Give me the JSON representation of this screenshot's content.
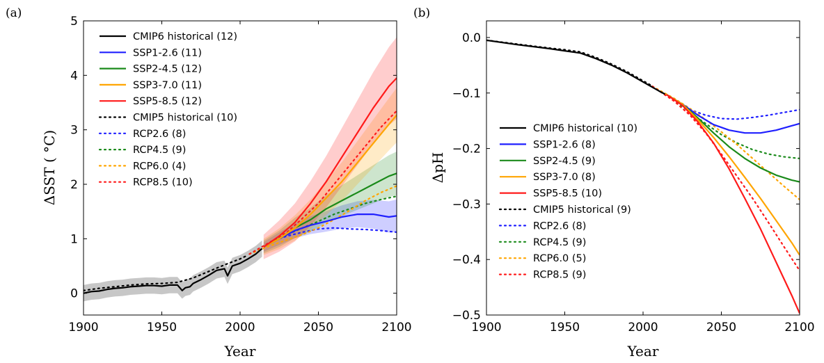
{
  "colors": {
    "historical": "#000000",
    "ssp126": "#1f1fff",
    "ssp245": "#1a8a1a",
    "ssp370": "#ffa500",
    "ssp585": "#ff1a1a"
  },
  "chart_data": [
    {
      "panel_label": "(a)",
      "type": "line",
      "xlabel": "Year",
      "ylabel": "ΔSST ( °C)",
      "xlim": [
        1900,
        2100
      ],
      "ylim": [
        -0.4,
        5
      ],
      "xticks": [
        1900,
        1950,
        2000,
        2050,
        2100
      ],
      "yticks": [
        0,
        1,
        2,
        3,
        4,
        5
      ],
      "legend_position": "upper-left",
      "legend": [
        {
          "label": "CMIP6 historical (12)",
          "color": "#000000",
          "style": "solid"
        },
        {
          "label": "SSP1-2.6 (11)",
          "color": "#1f1fff",
          "style": "solid"
        },
        {
          "label": "SSP2-4.5 (12)",
          "color": "#1a8a1a",
          "style": "solid"
        },
        {
          "label": "SSP3-7.0 (11)",
          "color": "#ffa500",
          "style": "solid"
        },
        {
          "label": "SSP5-8.5 (12)",
          "color": "#ff1a1a",
          "style": "solid"
        },
        {
          "label": "CMIP5 historical (10)",
          "color": "#000000",
          "style": "dotted"
        },
        {
          "label": "RCP2.6 (8)",
          "color": "#1f1fff",
          "style": "dotted"
        },
        {
          "label": "RCP4.5 (9)",
          "color": "#1a8a1a",
          "style": "dotted"
        },
        {
          "label": "RCP6.0 (4)",
          "color": "#ffa500",
          "style": "dotted"
        },
        {
          "label": "RCP8.5 (10)",
          "color": "#ff1a1a",
          "style": "dotted"
        }
      ],
      "series": [
        {
          "name": "CMIP6 historical (12)",
          "color": "#000000",
          "style": "solid",
          "band": 0.15,
          "x": [
            1900,
            1905,
            1910,
            1915,
            1920,
            1925,
            1930,
            1935,
            1940,
            1945,
            1950,
            1955,
            1960,
            1963,
            1965,
            1968,
            1970,
            1975,
            1980,
            1985,
            1990,
            1992,
            1995,
            2000,
            2005,
            2010,
            2014
          ],
          "y": [
            0.0,
            0.03,
            0.04,
            0.07,
            0.09,
            0.1,
            0.12,
            0.13,
            0.14,
            0.14,
            0.13,
            0.15,
            0.15,
            0.05,
            0.1,
            0.12,
            0.18,
            0.25,
            0.33,
            0.42,
            0.45,
            0.32,
            0.5,
            0.55,
            0.63,
            0.72,
            0.82
          ]
        },
        {
          "name": "CMIP5 historical (10)",
          "color": "#000000",
          "style": "dotted",
          "x": [
            1900,
            1910,
            1920,
            1930,
            1940,
            1950,
            1960,
            1970,
            1980,
            1990,
            2000,
            2005
          ],
          "y": [
            0.05,
            0.09,
            0.12,
            0.15,
            0.17,
            0.18,
            0.2,
            0.28,
            0.4,
            0.52,
            0.63,
            0.7
          ]
        },
        {
          "name": "SSP1-2.6 (11)",
          "color": "#1f1fff",
          "style": "solid",
          "band": 0.3,
          "x": [
            2015,
            2025,
            2035,
            2045,
            2055,
            2065,
            2075,
            2085,
            2095,
            2100
          ],
          "y": [
            0.85,
            1.0,
            1.15,
            1.25,
            1.32,
            1.4,
            1.45,
            1.45,
            1.4,
            1.42
          ]
        },
        {
          "name": "SSP2-4.5 (12)",
          "color": "#1a8a1a",
          "style": "solid",
          "band": 0.4,
          "x": [
            2015,
            2025,
            2035,
            2045,
            2055,
            2065,
            2075,
            2085,
            2095,
            2100
          ],
          "y": [
            0.85,
            1.0,
            1.2,
            1.35,
            1.55,
            1.7,
            1.85,
            2.0,
            2.15,
            2.2
          ]
        },
        {
          "name": "SSP3-7.0 (11)",
          "color": "#ffa500",
          "style": "solid",
          "band": 0.5,
          "x": [
            2015,
            2025,
            2035,
            2045,
            2055,
            2065,
            2075,
            2085,
            2095,
            2100
          ],
          "y": [
            0.85,
            1.0,
            1.2,
            1.45,
            1.75,
            2.05,
            2.4,
            2.75,
            3.1,
            3.27
          ]
        },
        {
          "name": "SSP5-8.5 (12)",
          "color": "#ff1a1a",
          "style": "solid",
          "band": 0.75,
          "x": [
            2015,
            2025,
            2035,
            2045,
            2055,
            2065,
            2075,
            2085,
            2095,
            2100
          ],
          "y": [
            0.85,
            1.05,
            1.3,
            1.65,
            2.05,
            2.5,
            2.95,
            3.4,
            3.8,
            3.95
          ]
        },
        {
          "name": "RCP2.6 (8)",
          "color": "#1f1fff",
          "style": "dotted",
          "x": [
            2006,
            2020,
            2030,
            2040,
            2050,
            2060,
            2070,
            2080,
            2090,
            2100
          ],
          "y": [
            0.72,
            0.95,
            1.05,
            1.12,
            1.18,
            1.2,
            1.18,
            1.17,
            1.15,
            1.12
          ]
        },
        {
          "name": "RCP4.5 (9)",
          "color": "#1a8a1a",
          "style": "dotted",
          "x": [
            2006,
            2020,
            2030,
            2040,
            2050,
            2060,
            2070,
            2080,
            2090,
            2100
          ],
          "y": [
            0.72,
            0.95,
            1.08,
            1.2,
            1.32,
            1.45,
            1.55,
            1.65,
            1.72,
            1.78
          ]
        },
        {
          "name": "RCP6.0 (4)",
          "color": "#ffa500",
          "style": "dotted",
          "x": [
            2006,
            2020,
            2030,
            2040,
            2050,
            2060,
            2070,
            2080,
            2090,
            2100
          ],
          "y": [
            0.72,
            0.88,
            0.98,
            1.08,
            1.2,
            1.35,
            1.52,
            1.7,
            1.85,
            1.97
          ]
        },
        {
          "name": "RCP8.5 (10)",
          "color": "#ff1a1a",
          "style": "dotted",
          "x": [
            2006,
            2020,
            2030,
            2040,
            2050,
            2060,
            2070,
            2080,
            2090,
            2100
          ],
          "y": [
            0.72,
            0.95,
            1.12,
            1.38,
            1.65,
            2.0,
            2.35,
            2.7,
            3.05,
            3.35
          ]
        }
      ]
    },
    {
      "panel_label": "(b)",
      "type": "line",
      "xlabel": "Year",
      "ylabel": "ΔpH",
      "xlim": [
        1900,
        2100
      ],
      "ylim": [
        -0.5,
        0.03
      ],
      "xticks": [
        1900,
        1950,
        2000,
        2050,
        2100
      ],
      "yticks": [
        0.0,
        -0.1,
        -0.2,
        -0.3,
        -0.4,
        -0.5
      ],
      "ytick_labels": [
        "0.0",
        "−0.1",
        "−0.2",
        "−0.3",
        "−0.4",
        "−0.5"
      ],
      "legend_position": "center-left",
      "legend": [
        {
          "label": "CMIP6 historical (10)",
          "color": "#000000",
          "style": "solid"
        },
        {
          "label": "SSP1-2.6 (8)",
          "color": "#1f1fff",
          "style": "solid"
        },
        {
          "label": "SSP2-4.5 (9)",
          "color": "#1a8a1a",
          "style": "solid"
        },
        {
          "label": "SSP3-7.0 (8)",
          "color": "#ffa500",
          "style": "solid"
        },
        {
          "label": "SSP5-8.5 (10)",
          "color": "#ff1a1a",
          "style": "solid"
        },
        {
          "label": "CMIP5 historical (9)",
          "color": "#000000",
          "style": "dotted"
        },
        {
          "label": "RCP2.6 (8)",
          "color": "#1f1fff",
          "style": "dotted"
        },
        {
          "label": "RCP4.5 (9)",
          "color": "#1a8a1a",
          "style": "dotted"
        },
        {
          "label": "RCP6.0 (5)",
          "color": "#ffa500",
          "style": "dotted"
        },
        {
          "label": "RCP8.5 (9)",
          "color": "#ff1a1a",
          "style": "dotted"
        }
      ],
      "series": [
        {
          "name": "CMIP6 historical (10)",
          "color": "#000000",
          "style": "solid",
          "x": [
            1900,
            1920,
            1940,
            1950,
            1960,
            1970,
            1980,
            1990,
            2000,
            2010,
            2014
          ],
          "y": [
            -0.005,
            -0.013,
            -0.02,
            -0.024,
            -0.028,
            -0.038,
            -0.05,
            -0.064,
            -0.08,
            -0.096,
            -0.102
          ]
        },
        {
          "name": "CMIP5 historical (9)",
          "color": "#000000",
          "style": "dotted",
          "x": [
            1900,
            1920,
            1940,
            1950,
            1960,
            1970,
            1980,
            1990,
            2000,
            2005
          ],
          "y": [
            -0.005,
            -0.012,
            -0.019,
            -0.022,
            -0.026,
            -0.036,
            -0.048,
            -0.062,
            -0.078,
            -0.086
          ]
        },
        {
          "name": "SSP1-2.6 (8)",
          "color": "#1f1fff",
          "style": "solid",
          "x": [
            2015,
            2025,
            2035,
            2045,
            2055,
            2065,
            2075,
            2085,
            2095,
            2100
          ],
          "y": [
            -0.103,
            -0.12,
            -0.14,
            -0.157,
            -0.167,
            -0.172,
            -0.172,
            -0.167,
            -0.159,
            -0.155
          ]
        },
        {
          "name": "SSP2-4.5 (9)",
          "color": "#1a8a1a",
          "style": "solid",
          "x": [
            2015,
            2025,
            2035,
            2045,
            2055,
            2065,
            2075,
            2085,
            2095,
            2100
          ],
          "y": [
            -0.103,
            -0.12,
            -0.145,
            -0.172,
            -0.197,
            -0.218,
            -0.235,
            -0.248,
            -0.257,
            -0.26
          ]
        },
        {
          "name": "SSP3-7.0 (8)",
          "color": "#ffa500",
          "style": "solid",
          "x": [
            2015,
            2025,
            2035,
            2045,
            2055,
            2065,
            2075,
            2085,
            2095,
            2100
          ],
          "y": [
            -0.103,
            -0.12,
            -0.148,
            -0.18,
            -0.215,
            -0.252,
            -0.29,
            -0.33,
            -0.37,
            -0.392
          ]
        },
        {
          "name": "SSP5-8.5 (10)",
          "color": "#ff1a1a",
          "style": "solid",
          "x": [
            2015,
            2025,
            2035,
            2045,
            2055,
            2065,
            2075,
            2085,
            2095,
            2100
          ],
          "y": [
            -0.103,
            -0.122,
            -0.152,
            -0.19,
            -0.237,
            -0.29,
            -0.345,
            -0.405,
            -0.465,
            -0.497
          ]
        },
        {
          "name": "RCP2.6 (8)",
          "color": "#1f1fff",
          "style": "dotted",
          "x": [
            2006,
            2020,
            2030,
            2040,
            2050,
            2060,
            2070,
            2080,
            2090,
            2100
          ],
          "y": [
            -0.088,
            -0.113,
            -0.13,
            -0.14,
            -0.146,
            -0.147,
            -0.144,
            -0.14,
            -0.135,
            -0.13
          ]
        },
        {
          "name": "RCP4.5 (9)",
          "color": "#1a8a1a",
          "style": "dotted",
          "x": [
            2006,
            2020,
            2030,
            2040,
            2050,
            2060,
            2070,
            2080,
            2090,
            2100
          ],
          "y": [
            -0.088,
            -0.113,
            -0.135,
            -0.155,
            -0.175,
            -0.19,
            -0.202,
            -0.21,
            -0.215,
            -0.218
          ]
        },
        {
          "name": "RCP6.0 (5)",
          "color": "#ffa500",
          "style": "dotted",
          "x": [
            2006,
            2020,
            2030,
            2040,
            2050,
            2060,
            2070,
            2080,
            2090,
            2100
          ],
          "y": [
            -0.088,
            -0.11,
            -0.128,
            -0.148,
            -0.17,
            -0.193,
            -0.218,
            -0.243,
            -0.268,
            -0.292
          ]
        },
        {
          "name": "RCP8.5 (9)",
          "color": "#ff1a1a",
          "style": "dotted",
          "x": [
            2006,
            2020,
            2030,
            2040,
            2050,
            2060,
            2070,
            2080,
            2090,
            2100
          ],
          "y": [
            -0.088,
            -0.115,
            -0.14,
            -0.172,
            -0.21,
            -0.25,
            -0.29,
            -0.333,
            -0.377,
            -0.42
          ]
        }
      ]
    }
  ]
}
